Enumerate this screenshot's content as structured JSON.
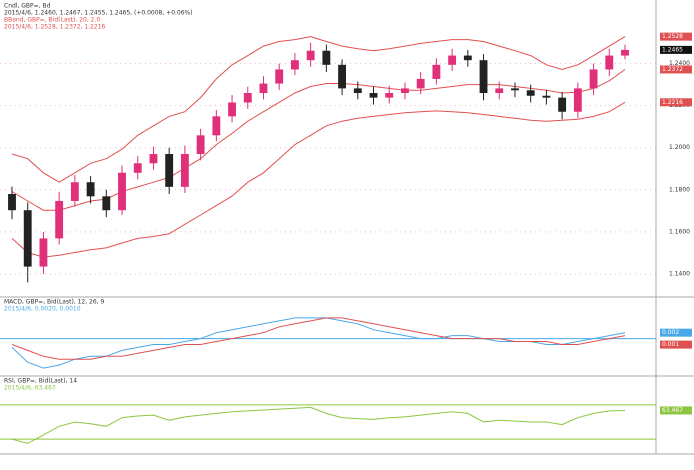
{
  "chart_data": [
    {
      "type": "candlestick",
      "title": "Cndl, GBP=, Bd",
      "subtitle": "2015/4/6, 1.2460, 1.2467, 1.2455, 1.2465, (+0.0008, +0.06%)",
      "open": [
        1.178,
        1.1703,
        1.1435,
        1.1569,
        1.1747,
        1.1836,
        1.1769,
        1.1703,
        1.1881,
        1.1926,
        1.197,
        1.1814,
        1.197,
        1.2059,
        1.2149,
        1.2215,
        1.226,
        1.2305,
        1.2372,
        1.2416,
        1.2461,
        1.2394,
        1.2282,
        1.226,
        1.2238,
        1.226,
        1.2282,
        1.2327,
        1.2394,
        1.2438,
        1.2416,
        1.226,
        1.2282,
        1.2273,
        1.2247,
        1.2238,
        1.2171,
        1.2282,
        1.2372,
        1.2438
      ],
      "high": [
        1.1815,
        1.174,
        1.16,
        1.179,
        1.187,
        1.1865,
        1.18,
        1.1915,
        1.196,
        1.2005,
        1.2,
        1.201,
        1.209,
        1.218,
        1.225,
        1.229,
        1.234,
        1.24,
        1.245,
        1.25,
        1.249,
        1.242,
        1.2315,
        1.229,
        1.2295,
        1.231,
        1.236,
        1.2425,
        1.247,
        1.2465,
        1.2445,
        1.2315,
        1.231,
        1.23,
        1.2275,
        1.2265,
        1.231,
        1.24,
        1.247,
        1.249
      ],
      "low": [
        1.166,
        1.136,
        1.14,
        1.154,
        1.172,
        1.1735,
        1.167,
        1.168,
        1.185,
        1.1895,
        1.178,
        1.1785,
        1.194,
        1.203,
        1.212,
        1.2185,
        1.223,
        1.2275,
        1.2345,
        1.2385,
        1.236,
        1.225,
        1.223,
        1.2205,
        1.221,
        1.223,
        1.2255,
        1.23,
        1.2365,
        1.2385,
        1.2225,
        1.223,
        1.224,
        1.2215,
        1.2205,
        1.2135,
        1.214,
        1.225,
        1.234,
        1.242
      ],
      "close": [
        1.1703,
        1.1435,
        1.1569,
        1.1747,
        1.1836,
        1.1769,
        1.1703,
        1.1881,
        1.1926,
        1.197,
        1.1814,
        1.197,
        1.2059,
        1.2149,
        1.2215,
        1.226,
        1.2305,
        1.2372,
        1.2416,
        1.2461,
        1.2394,
        1.2282,
        1.226,
        1.2238,
        1.226,
        1.2282,
        1.2327,
        1.2394,
        1.2438,
        1.2416,
        1.226,
        1.2282,
        1.2273,
        1.2247,
        1.2238,
        1.2171,
        1.2282,
        1.2372,
        1.2438,
        1.2465
      ],
      "up_color": "#e0307a",
      "down_color": "#222222",
      "bands": {
        "title": "BBand, GBP=, Bid(Last), 20, 2.0",
        "subtitle": "2015/4/6, 1.2528, 1.2372, 1.2216",
        "color": "#e05050",
        "upper": [
          1.197,
          1.1948,
          1.1881,
          1.1836,
          1.1881,
          1.1926,
          1.1948,
          1.1993,
          1.2059,
          1.2104,
          1.2149,
          1.2171,
          1.2238,
          1.2327,
          1.2394,
          1.2438,
          1.2483,
          1.2505,
          1.2514,
          1.2528,
          1.2505,
          1.2483,
          1.247,
          1.2461,
          1.247,
          1.2483,
          1.2496,
          1.2505,
          1.2514,
          1.2514,
          1.2505,
          1.2483,
          1.2461,
          1.2438,
          1.2394,
          1.2372,
          1.2394,
          1.2438,
          1.2483,
          1.2528
        ],
        "middle": [
          1.1792,
          1.1747,
          1.1703,
          1.1703,
          1.1725,
          1.1747,
          1.1756,
          1.1792,
          1.1814,
          1.1836,
          1.1859,
          1.1903,
          1.1948,
          1.2015,
          1.2068,
          1.2126,
          1.2171,
          1.2216,
          1.226,
          1.2291,
          1.2305,
          1.2305,
          1.23,
          1.2291,
          1.2282,
          1.2273,
          1.2273,
          1.2282,
          1.2291,
          1.23,
          1.23,
          1.23,
          1.2291,
          1.2282,
          1.2273,
          1.226,
          1.2264,
          1.2282,
          1.2318,
          1.2372
        ],
        "lower": [
          1.1569,
          1.1502,
          1.148,
          1.1489,
          1.1502,
          1.1515,
          1.1524,
          1.1547,
          1.1569,
          1.1578,
          1.1591,
          1.1636,
          1.168,
          1.1725,
          1.177,
          1.1836,
          1.1881,
          1.1948,
          1.2015,
          1.2059,
          1.2104,
          1.2126,
          1.214,
          1.2149,
          1.2158,
          1.2166,
          1.2171,
          1.2175,
          1.2171,
          1.2166,
          1.2158,
          1.2149,
          1.214,
          1.2131,
          1.2126,
          1.2131,
          1.2135,
          1.2149,
          1.2171,
          1.2216
        ]
      },
      "ylim": [
        1.13,
        1.255
      ],
      "yticks": [
        {
          "value": 1.14,
          "label": "1.1400"
        },
        {
          "value": 1.16,
          "label": "1.1600"
        },
        {
          "value": 1.18,
          "label": "1.1800"
        },
        {
          "value": 1.2,
          "label": "1.2000"
        },
        {
          "value": 1.22,
          "label": "1.2200"
        },
        {
          "value": 1.24,
          "label": "1.2400"
        }
      ],
      "grid": true
    },
    {
      "type": "line",
      "title": "MACD, GBP=, Bid(Last), 12, 26, 9",
      "subtitle": "2015/4/6, 0.0020, 0.0010",
      "series": [
        {
          "color": "#4aa8e8",
          "values": [
            -0.003,
            -0.008,
            -0.01,
            -0.009,
            -0.007,
            -0.006,
            -0.006,
            -0.004,
            -0.003,
            -0.002,
            -0.002,
            -0.001,
            0.0,
            0.002,
            0.003,
            0.004,
            0.005,
            0.006,
            0.007,
            0.007,
            0.007,
            0.006,
            0.005,
            0.003,
            0.002,
            0.001,
            0.0,
            0.0,
            0.001,
            0.001,
            0.0,
            -0.001,
            -0.001,
            -0.001,
            -0.002,
            -0.002,
            -0.001,
            0.0,
            0.001,
            0.002
          ]
        },
        {
          "color": "#e05050",
          "values": [
            -0.002,
            -0.004,
            -0.006,
            -0.007,
            -0.007,
            -0.007,
            -0.006,
            -0.006,
            -0.005,
            -0.004,
            -0.003,
            -0.002,
            -0.002,
            -0.001,
            0.0,
            0.001,
            0.002,
            0.004,
            0.005,
            0.006,
            0.007,
            0.007,
            0.006,
            0.005,
            0.004,
            0.003,
            0.002,
            0.001,
            0.0,
            0.0,
            0.0,
            0.0,
            -0.001,
            -0.001,
            -0.001,
            -0.002,
            -0.002,
            -0.001,
            0.0,
            0.001
          ]
        }
      ],
      "ylim": [
        -0.012,
        0.009
      ],
      "hlines": [
        0
      ],
      "hline_color": "#4aa8e8"
    },
    {
      "type": "line",
      "title": "RSI, GBP=, Bid(Last), 14",
      "subtitle": "2015/4/6, 63.467",
      "series": [
        {
          "color": "#8cc63f",
          "values": [
            30,
            25,
            35,
            45,
            50,
            48,
            45,
            55,
            57,
            58,
            52,
            56,
            58,
            60,
            62,
            63,
            64,
            65,
            66,
            67,
            60,
            55,
            54,
            53,
            55,
            56,
            58,
            60,
            62,
            60,
            50,
            52,
            51,
            50,
            50,
            47,
            55,
            60,
            63,
            63.467
          ]
        }
      ],
      "ylim": [
        15,
        85
      ],
      "hlines": [
        30,
        70
      ],
      "hline_color": "#8cc63f"
    }
  ]
}
